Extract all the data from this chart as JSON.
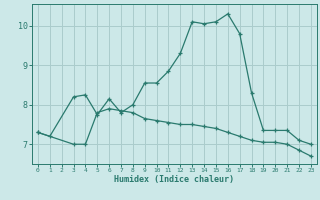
{
  "x": [
    0,
    1,
    2,
    3,
    4,
    5,
    6,
    7,
    8,
    9,
    10,
    11,
    12,
    13,
    14,
    15,
    16,
    17,
    18,
    19,
    20,
    21,
    22,
    23
  ],
  "line1": [
    7.3,
    7.2,
    null,
    8.2,
    8.25,
    7.75,
    8.15,
    7.8,
    8.0,
    8.55,
    8.55,
    8.85,
    9.3,
    10.1,
    10.05,
    10.1,
    10.3,
    9.8,
    8.3,
    7.35,
    7.35,
    7.35,
    7.1,
    7.0
  ],
  "line2": [
    7.3,
    null,
    null,
    7.0,
    7.0,
    7.8,
    7.9,
    7.85,
    7.8,
    7.65,
    7.6,
    7.55,
    7.5,
    7.5,
    7.45,
    7.4,
    7.3,
    7.2,
    7.1,
    7.05,
    7.05,
    7.0,
    6.85,
    6.7
  ],
  "line_color": "#2a7a6e",
  "bg_color": "#cce8e8",
  "grid_color": "#aacccc",
  "xlabel": "Humidex (Indice chaleur)",
  "ylim": [
    6.5,
    10.55
  ],
  "xlim": [
    -0.5,
    23.5
  ],
  "yticks": [
    7,
    8,
    9,
    10
  ],
  "xticks": [
    0,
    1,
    2,
    3,
    4,
    5,
    6,
    7,
    8,
    9,
    10,
    11,
    12,
    13,
    14,
    15,
    16,
    17,
    18,
    19,
    20,
    21,
    22,
    23
  ]
}
